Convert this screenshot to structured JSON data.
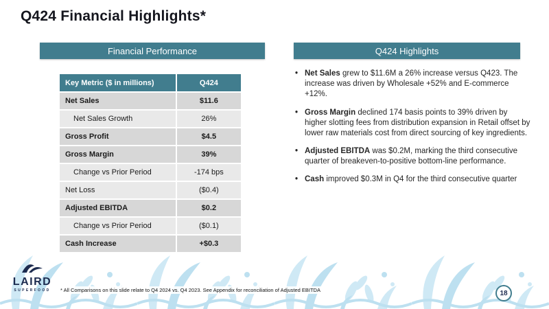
{
  "slide": {
    "title": "Q424 Financial Highlights*",
    "footnote": "* All Comparisons on this slide relate to Q4 2024 vs. Q4 2023.   See Appendix for reconciliation of Adjusted EBITDA",
    "page_number": "18"
  },
  "left_panel": {
    "header": "Financial Performance",
    "table": {
      "columns": [
        "Key Metric ($ in millions)",
        "Q424"
      ],
      "rows": [
        {
          "metric": "Net Sales",
          "value": "$11.6",
          "bold": true,
          "indent": false
        },
        {
          "metric": "Net Sales Growth",
          "value": "26%",
          "bold": false,
          "indent": true
        },
        {
          "metric": "Gross Profit",
          "value": "$4.5",
          "bold": true,
          "indent": false
        },
        {
          "metric": "Gross Margin",
          "value": "39%",
          "bold": true,
          "indent": false
        },
        {
          "metric": "Change vs Prior Period",
          "value": "-174 bps",
          "bold": false,
          "indent": true
        },
        {
          "metric": "Net Loss",
          "value": "($0.4)",
          "bold": false,
          "indent": false
        },
        {
          "metric": "Adjusted EBITDA",
          "value": "$0.2",
          "bold": true,
          "indent": false
        },
        {
          "metric": "Change vs Prior Period",
          "value": "($0.1)",
          "bold": false,
          "indent": true
        },
        {
          "metric": "Cash Increase",
          "value": "+$0.3",
          "bold": true,
          "indent": false
        }
      ]
    }
  },
  "right_panel": {
    "header": "Q424 Highlights",
    "bullets": [
      {
        "lead": "Net Sales",
        "text": " grew to $11.6M a 26% increase versus Q423. The increase was driven by Wholesale +52% and E-commerce +12%."
      },
      {
        "lead": "Gross Margin",
        "text": " declined 174 basis points to 39% driven by higher slotting fees from distribution expansion in Retail offset by lower raw materials cost from direct sourcing of key ingredients."
      },
      {
        "lead": "Adjusted EBITDA",
        "text": " was $0.2M, marking the third consecutive quarter of breakeven-to-positive bottom-line performance."
      },
      {
        "lead": "Cash",
        "text": " improved $0.3M in Q4 for the third consecutive quarter"
      }
    ]
  },
  "logo": {
    "brand": "LAIRD",
    "sub": "SUPERFOOD"
  },
  "colors": {
    "teal_header": "#417d8e",
    "row_dark": "#d7d7d7",
    "row_light": "#e9e9e9",
    "navy": "#1d2b4f",
    "pattern_blue": "#cfe9f5",
    "pattern_blue2": "#bde0f0"
  }
}
